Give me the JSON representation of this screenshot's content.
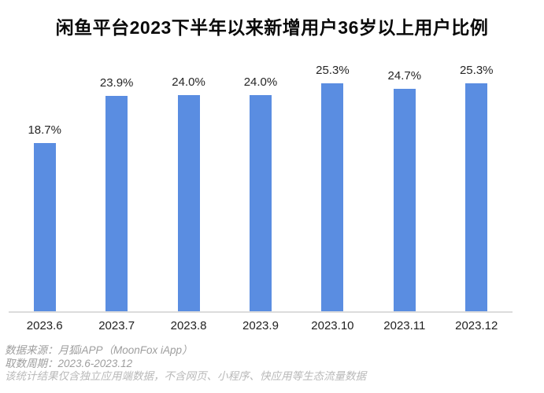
{
  "chart_data": {
    "type": "bar",
    "title": "闲鱼平台2023下半年以来新增用户36岁以上用户比例",
    "categories": [
      "2023.6",
      "2023.7",
      "2023.8",
      "2023.9",
      "2023.10",
      "2023.11",
      "2023.12"
    ],
    "values": [
      18.7,
      23.9,
      24.0,
      24.0,
      25.3,
      24.7,
      25.3
    ],
    "value_labels": [
      "18.7%",
      "23.9%",
      "24.0%",
      "24.0%",
      "25.3%",
      "24.7%",
      "25.3%"
    ],
    "xlabel": "",
    "ylabel": "",
    "ylim": [
      0,
      27
    ],
    "grid": false,
    "legend": "none",
    "bar_color": "#5a8de1",
    "axis_color": "#dcdcdc"
  },
  "footer": {
    "source_line": "数据来源：月狐iAPP（MoonFox iApp）",
    "period_line": "取数周期：2023.6-2023.12",
    "note_line": "该统计结果仅含独立应用端数据，不含网页、小程序、快应用等生态流量数据"
  }
}
